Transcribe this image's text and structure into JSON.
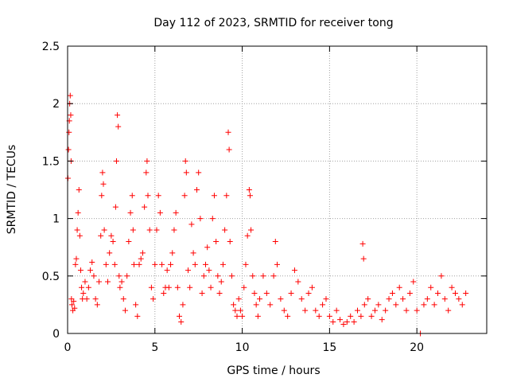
{
  "chart_data": {
    "type": "scatter",
    "title": "Day 112 of 2023, SRMTID for receiver tong",
    "xlabel": "GPS time / hours",
    "ylabel": "SRMTID / TECUs",
    "xlim": [
      0,
      24
    ],
    "ylim": [
      0,
      2.5
    ],
    "x_ticks": [
      0,
      5,
      10,
      15,
      20
    ],
    "x_tick_labels": [
      "0",
      "5",
      "10",
      "15",
      "20"
    ],
    "y_ticks": [
      0,
      0.5,
      1,
      1.5,
      2,
      2.5
    ],
    "y_tick_labels": [
      "0",
      "0.5",
      "1",
      "1.5",
      "2",
      "2.5"
    ],
    "grid": true,
    "marker": "+",
    "color": "#ff0000",
    "series": [
      {
        "name": "SRMTID",
        "points": [
          [
            0.02,
            1.35
          ],
          [
            0.05,
            1.6
          ],
          [
            0.08,
            1.75
          ],
          [
            0.1,
            1.85
          ],
          [
            0.12,
            2.0
          ],
          [
            0.15,
            2.07
          ],
          [
            0.18,
            1.9
          ],
          [
            0.2,
            1.5
          ],
          [
            0.22,
            0.3
          ],
          [
            0.25,
            0.25
          ],
          [
            0.3,
            0.2
          ],
          [
            0.35,
            0.28
          ],
          [
            0.4,
            0.22
          ],
          [
            0.45,
            0.6
          ],
          [
            0.5,
            0.65
          ],
          [
            0.55,
            0.9
          ],
          [
            0.6,
            1.05
          ],
          [
            0.65,
            1.25
          ],
          [
            0.7,
            0.85
          ],
          [
            0.75,
            0.55
          ],
          [
            0.8,
            0.4
          ],
          [
            0.85,
            0.3
          ],
          [
            0.9,
            0.35
          ],
          [
            1.0,
            0.45
          ],
          [
            1.1,
            0.3
          ],
          [
            1.2,
            0.4
          ],
          [
            1.3,
            0.55
          ],
          [
            1.4,
            0.62
          ],
          [
            1.5,
            0.5
          ],
          [
            1.6,
            0.3
          ],
          [
            1.7,
            0.25
          ],
          [
            1.8,
            0.45
          ],
          [
            1.9,
            0.85
          ],
          [
            1.95,
            1.2
          ],
          [
            2.0,
            1.4
          ],
          [
            2.05,
            1.3
          ],
          [
            2.1,
            0.9
          ],
          [
            2.2,
            0.6
          ],
          [
            2.3,
            0.45
          ],
          [
            2.4,
            0.7
          ],
          [
            2.5,
            0.85
          ],
          [
            2.6,
            0.8
          ],
          [
            2.7,
            0.6
          ],
          [
            2.75,
            1.1
          ],
          [
            2.8,
            1.5
          ],
          [
            2.85,
            1.9
          ],
          [
            2.9,
            1.8
          ],
          [
            2.95,
            0.5
          ],
          [
            3.0,
            0.4
          ],
          [
            3.1,
            0.45
          ],
          [
            3.2,
            0.3
          ],
          [
            3.3,
            0.2
          ],
          [
            3.4,
            0.5
          ],
          [
            3.5,
            0.8
          ],
          [
            3.6,
            1.05
          ],
          [
            3.7,
            1.2
          ],
          [
            3.75,
            0.9
          ],
          [
            3.8,
            0.6
          ],
          [
            3.9,
            0.25
          ],
          [
            4.0,
            0.15
          ],
          [
            4.1,
            0.6
          ],
          [
            4.2,
            0.65
          ],
          [
            4.3,
            0.7
          ],
          [
            4.4,
            1.1
          ],
          [
            4.5,
            1.4
          ],
          [
            4.55,
            1.5
          ],
          [
            4.6,
            1.2
          ],
          [
            4.7,
            0.9
          ],
          [
            4.8,
            0.4
          ],
          [
            4.9,
            0.3
          ],
          [
            5.0,
            0.6
          ],
          [
            5.1,
            0.9
          ],
          [
            5.2,
            1.2
          ],
          [
            5.3,
            1.05
          ],
          [
            5.4,
            0.6
          ],
          [
            5.5,
            0.35
          ],
          [
            5.6,
            0.4
          ],
          [
            5.7,
            0.55
          ],
          [
            5.8,
            0.4
          ],
          [
            5.9,
            0.6
          ],
          [
            6.0,
            0.7
          ],
          [
            6.1,
            0.9
          ],
          [
            6.2,
            1.05
          ],
          [
            6.3,
            0.4
          ],
          [
            6.4,
            0.15
          ],
          [
            6.5,
            0.1
          ],
          [
            6.6,
            0.25
          ],
          [
            6.7,
            1.2
          ],
          [
            6.75,
            1.5
          ],
          [
            6.8,
            1.4
          ],
          [
            6.9,
            0.55
          ],
          [
            7.0,
            0.4
          ],
          [
            7.1,
            0.95
          ],
          [
            7.2,
            0.7
          ],
          [
            7.3,
            0.6
          ],
          [
            7.4,
            1.25
          ],
          [
            7.5,
            1.4
          ],
          [
            7.6,
            1.0
          ],
          [
            7.7,
            0.35
          ],
          [
            7.8,
            0.5
          ],
          [
            7.9,
            0.6
          ],
          [
            8.0,
            0.75
          ],
          [
            8.1,
            0.55
          ],
          [
            8.2,
            0.4
          ],
          [
            8.3,
            1.0
          ],
          [
            8.4,
            1.2
          ],
          [
            8.5,
            0.8
          ],
          [
            8.6,
            0.5
          ],
          [
            8.7,
            0.35
          ],
          [
            8.8,
            0.45
          ],
          [
            8.9,
            0.6
          ],
          [
            9.0,
            0.9
          ],
          [
            9.1,
            1.2
          ],
          [
            9.2,
            1.75
          ],
          [
            9.25,
            1.6
          ],
          [
            9.3,
            0.8
          ],
          [
            9.4,
            0.5
          ],
          [
            9.5,
            0.25
          ],
          [
            9.6,
            0.2
          ],
          [
            9.7,
            0.15
          ],
          [
            9.8,
            0.3
          ],
          [
            9.9,
            0.2
          ],
          [
            10.0,
            0.15
          ],
          [
            10.1,
            0.4
          ],
          [
            10.2,
            0.6
          ],
          [
            10.3,
            0.85
          ],
          [
            10.4,
            1.25
          ],
          [
            10.45,
            1.2
          ],
          [
            10.5,
            0.9
          ],
          [
            10.6,
            0.5
          ],
          [
            10.7,
            0.35
          ],
          [
            10.8,
            0.25
          ],
          [
            10.9,
            0.15
          ],
          [
            11.0,
            0.3
          ],
          [
            11.2,
            0.5
          ],
          [
            11.4,
            0.35
          ],
          [
            11.6,
            0.25
          ],
          [
            11.8,
            0.5
          ],
          [
            11.9,
            0.8
          ],
          [
            12.0,
            0.6
          ],
          [
            12.2,
            0.3
          ],
          [
            12.4,
            0.2
          ],
          [
            12.6,
            0.15
          ],
          [
            12.8,
            0.35
          ],
          [
            13.0,
            0.55
          ],
          [
            13.2,
            0.45
          ],
          [
            13.4,
            0.3
          ],
          [
            13.6,
            0.2
          ],
          [
            13.8,
            0.35
          ],
          [
            14.0,
            0.4
          ],
          [
            14.2,
            0.2
          ],
          [
            14.4,
            0.15
          ],
          [
            14.6,
            0.25
          ],
          [
            14.8,
            0.3
          ],
          [
            15.0,
            0.15
          ],
          [
            15.2,
            0.1
          ],
          [
            15.4,
            0.2
          ],
          [
            15.6,
            0.12
          ],
          [
            15.8,
            0.08
          ],
          [
            16.0,
            0.1
          ],
          [
            16.2,
            0.15
          ],
          [
            16.4,
            0.1
          ],
          [
            16.6,
            0.2
          ],
          [
            16.8,
            0.15
          ],
          [
            16.9,
            0.78
          ],
          [
            16.95,
            0.65
          ],
          [
            17.0,
            0.25
          ],
          [
            17.2,
            0.3
          ],
          [
            17.4,
            0.15
          ],
          [
            17.6,
            0.2
          ],
          [
            17.8,
            0.25
          ],
          [
            18.0,
            0.12
          ],
          [
            18.2,
            0.2
          ],
          [
            18.4,
            0.3
          ],
          [
            18.6,
            0.35
          ],
          [
            18.8,
            0.25
          ],
          [
            19.0,
            0.4
          ],
          [
            19.2,
            0.3
          ],
          [
            19.4,
            0.2
          ],
          [
            19.6,
            0.35
          ],
          [
            19.8,
            0.45
          ],
          [
            20.0,
            0.2
          ],
          [
            20.2,
            0.0
          ],
          [
            20.4,
            0.25
          ],
          [
            20.6,
            0.3
          ],
          [
            20.8,
            0.4
          ],
          [
            21.0,
            0.25
          ],
          [
            21.2,
            0.35
          ],
          [
            21.4,
            0.5
          ],
          [
            21.6,
            0.3
          ],
          [
            21.8,
            0.2
          ],
          [
            22.0,
            0.4
          ],
          [
            22.2,
            0.35
          ],
          [
            22.4,
            0.3
          ],
          [
            22.6,
            0.25
          ],
          [
            22.8,
            0.35
          ]
        ]
      }
    ]
  }
}
